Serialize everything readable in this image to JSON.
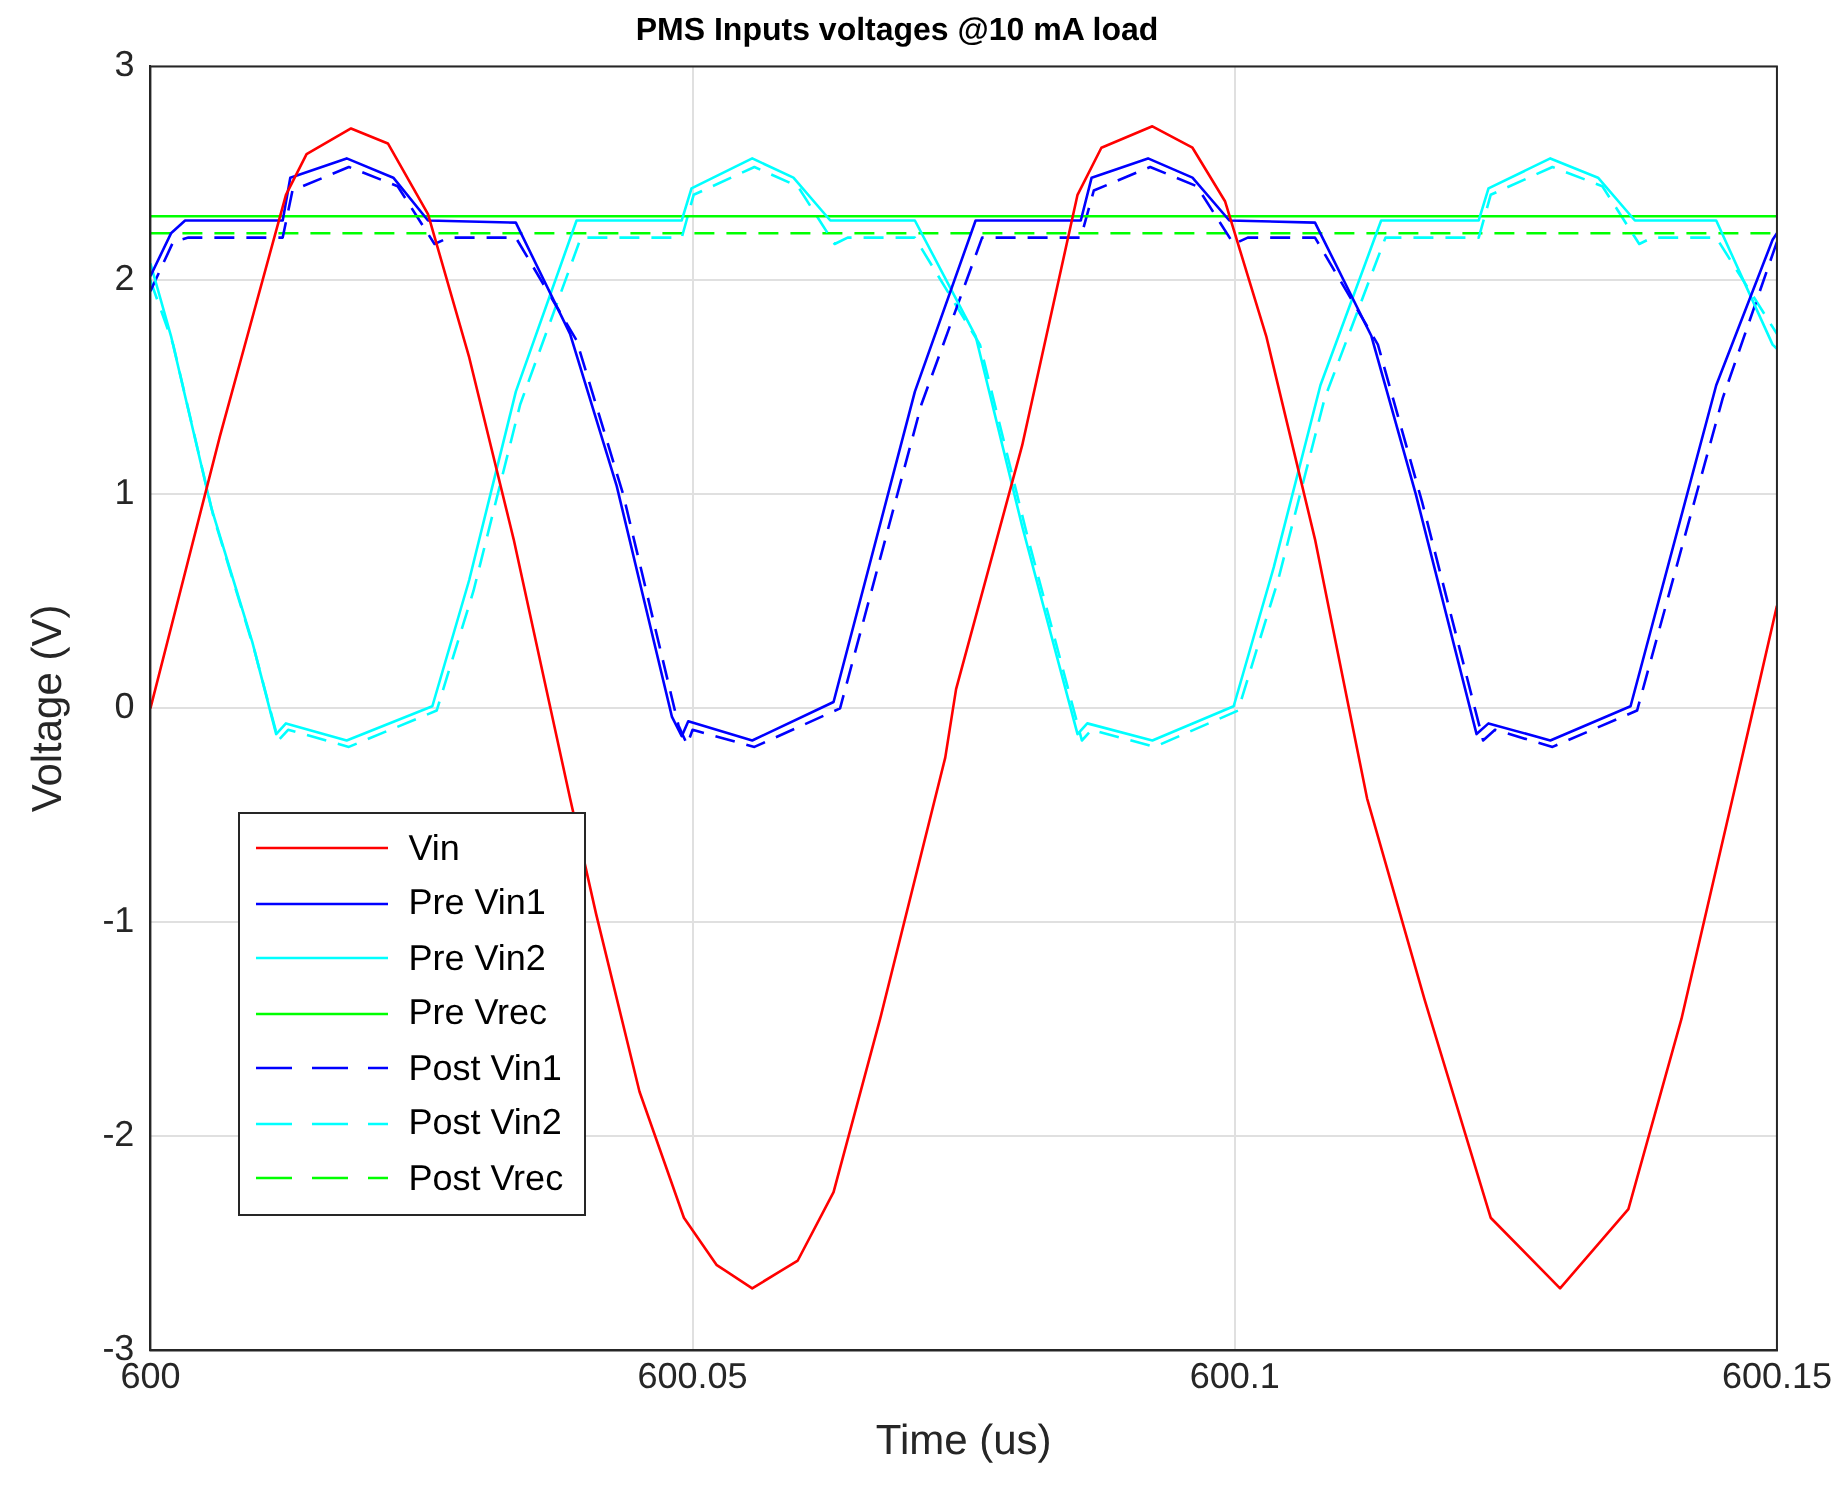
{
  "chart_data": {
    "type": "line",
    "title": "PMS Inputs voltages @10 mA load",
    "xlabel": "Time (us)",
    "ylabel": "Voltage (V)",
    "xlim": [
      600,
      600.15
    ],
    "xticks": [
      600,
      600.05,
      600.1,
      600.15
    ],
    "ylim": [
      -3,
      3
    ],
    "yticks": [
      -3,
      -2,
      -1,
      0,
      1,
      2,
      3
    ],
    "grid": true,
    "legend": "left",
    "series": [
      {
        "name": "Vin",
        "color": "#ff0000",
        "line_style": "solid",
        "x": [
          600,
          600.0064,
          600.0125,
          600.0144,
          600.0185,
          600.0219,
          600.0256,
          600.0294,
          600.0335,
          600.0387,
          600.0411,
          600.0451,
          600.0492,
          600.0522,
          600.0555,
          600.0597,
          600.063,
          600.0673,
          600.0733,
          600.0743,
          600.0804,
          600.0855,
          600.0877,
          600.0924,
          600.0961,
          600.0991,
          600.1029,
          600.1074,
          600.1122,
          600.1175,
          600.1236,
          600.13,
          600.1363,
          600.1412,
          600.1476,
          600.15
        ],
        "values": [
          0,
          1.27,
          2.4,
          2.59,
          2.71,
          2.64,
          2.31,
          1.64,
          0.79,
          -0.42,
          -0.96,
          -1.79,
          -2.38,
          -2.6,
          -2.71,
          -2.58,
          -2.26,
          -1.45,
          -0.23,
          0.09,
          1.23,
          2.4,
          2.62,
          2.72,
          2.62,
          2.37,
          1.74,
          0.79,
          -0.42,
          -1.36,
          -2.38,
          -2.71,
          -2.34,
          -1.45,
          -0.05,
          0.48
        ]
      },
      {
        "name": "Pre Vin1",
        "color": "#0000ff",
        "line_style": "solid",
        "x": [
          600,
          600.0019,
          600.0032,
          600.0122,
          600.0129,
          600.0181,
          600.0224,
          600.0256,
          600.0337,
          600.0387,
          600.043,
          600.0481,
          600.049,
          600.0496,
          600.0555,
          600.063,
          600.0705,
          600.0761,
          600.0858,
          600.0868,
          600.092,
          600.0961,
          600.0995,
          600.1074,
          600.1126,
          600.1167,
          600.1223,
          600.1234,
          600.1291,
          600.1365,
          600.1444,
          600.1496,
          600.15
        ],
        "values": [
          2.02,
          2.22,
          2.28,
          2.28,
          2.48,
          2.57,
          2.48,
          2.28,
          2.27,
          1.75,
          1.04,
          -0.04,
          -0.13,
          -0.06,
          -0.15,
          0.03,
          1.48,
          2.28,
          2.28,
          2.48,
          2.57,
          2.48,
          2.28,
          2.27,
          1.74,
          1.0,
          -0.12,
          -0.07,
          -0.15,
          0.01,
          1.51,
          2.19,
          2.22
        ]
      },
      {
        "name": "Pre Vin2",
        "color": "#00ffff",
        "line_style": "solid",
        "x": [
          600,
          600.0019,
          600.0056,
          600.0094,
          600.0116,
          600.0125,
          600.0181,
          600.026,
          600.0294,
          600.0337,
          600.0393,
          600.049,
          600.0499,
          600.0555,
          600.0593,
          600.0627,
          600.0705,
          600.0761,
          600.0804,
          600.0855,
          600.0864,
          600.0924,
          600.0999,
          600.1036,
          600.1079,
          600.1135,
          600.1225,
          600.1234,
          600.1291,
          600.1335,
          600.1369,
          600.1444,
          600.1496,
          600.15
        ],
        "values": [
          2.08,
          1.74,
          0.94,
          0.31,
          -0.12,
          -0.07,
          -0.15,
          0.01,
          0.6,
          1.48,
          2.28,
          2.28,
          2.43,
          2.57,
          2.48,
          2.28,
          2.28,
          1.74,
          0.85,
          -0.12,
          -0.07,
          -0.15,
          0.01,
          0.66,
          1.51,
          2.28,
          2.28,
          2.43,
          2.57,
          2.48,
          2.28,
          2.28,
          1.7,
          1.68
        ]
      },
      {
        "name": "Pre Vrec",
        "color": "#00ff00",
        "line_style": "solid",
        "x": [
          600,
          600.15
        ],
        "values": [
          2.3,
          2.3
        ]
      },
      {
        "name": "Post Vin1",
        "color": "#0000ff",
        "line_style": "dashed",
        "x": [
          600,
          600.0021,
          600.0035,
          600.0122,
          600.0131,
          600.0183,
          600.0228,
          600.0262,
          600.0275,
          600.0337,
          600.0393,
          600.0436,
          600.0487,
          600.0495,
          600.05,
          600.0557,
          600.0636,
          600.0711,
          600.0767,
          600.0858,
          600.087,
          600.0922,
          600.0965,
          600.0999,
          600.1012,
          600.1074,
          600.1132,
          600.1173,
          600.1229,
          600.124,
          600.1293,
          600.1371,
          600.145,
          600.15
        ],
        "values": [
          1.95,
          2.18,
          2.2,
          2.2,
          2.42,
          2.53,
          2.44,
          2.17,
          2.2,
          2.2,
          1.72,
          1.0,
          -0.08,
          -0.17,
          -0.1,
          -0.18,
          0,
          1.42,
          2.2,
          2.2,
          2.42,
          2.53,
          2.44,
          2.17,
          2.2,
          2.2,
          1.7,
          0.96,
          -0.15,
          -0.1,
          -0.18,
          -0.01,
          1.45,
          2.18
        ]
      },
      {
        "name": "Post Vin2",
        "color": "#00ffff",
        "line_style": "dashed",
        "x": [
          600,
          600.0021,
          600.0058,
          600.0096,
          600.0118,
          600.0127,
          600.0183,
          600.0264,
          600.0298,
          600.0341,
          600.0397,
          600.049,
          600.0501,
          600.0557,
          600.0597,
          600.0631,
          600.0643,
          600.0705,
          600.0765,
          600.0808,
          600.0859,
          600.0868,
          600.0926,
          600.1003,
          600.104,
          600.1083,
          600.1139,
          600.1225,
          600.1236,
          600.1293,
          600.1339,
          600.1373,
          600.1385,
          600.1444,
          600.15
        ],
        "values": [
          2.0,
          1.7,
          0.9,
          0.27,
          -0.15,
          -0.1,
          -0.18,
          -0.01,
          0.55,
          1.42,
          2.2,
          2.2,
          2.4,
          2.53,
          2.44,
          2.17,
          2.2,
          2.2,
          1.7,
          0.82,
          -0.15,
          -0.1,
          -0.18,
          -0.01,
          0.6,
          1.45,
          2.2,
          2.2,
          2.4,
          2.53,
          2.44,
          2.17,
          2.2,
          2.2,
          1.75
        ]
      },
      {
        "name": "Post Vrec",
        "color": "#00ff00",
        "line_style": "dashed",
        "x": [
          600,
          600.15
        ],
        "values": [
          2.22,
          2.22
        ]
      }
    ]
  }
}
